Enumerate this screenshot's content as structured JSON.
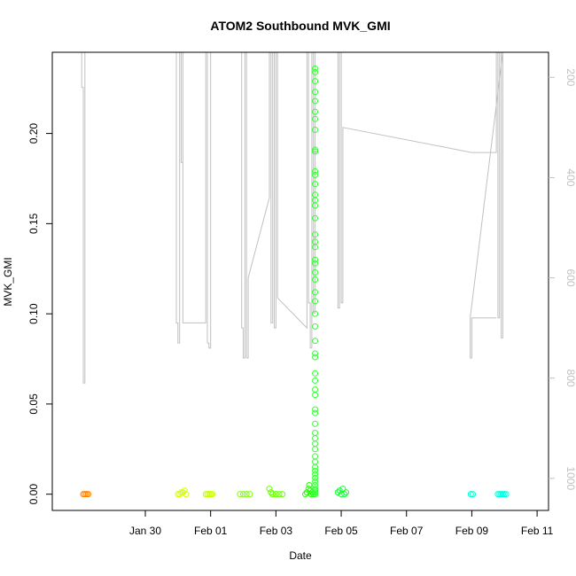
{
  "chart_data": {
    "type": "scatter",
    "title": "ATOM2 Southbound MVK_GMI",
    "xlabel": "Date",
    "ylabel": "MVK_GMI",
    "x_ticks": [
      "Jan 30",
      "Feb 01",
      "Feb 03",
      "Feb 05",
      "Feb 07",
      "Feb 09",
      "Feb 11"
    ],
    "y_ticks": [
      "0.00",
      "0.05",
      "0.10",
      "0.15",
      "0.20"
    ],
    "y2_ticks": [
      "200",
      "400",
      "600",
      "800",
      "1000"
    ],
    "ylim": [
      -0.009,
      0.245
    ],
    "y2lim": [
      1064,
      150
    ],
    "xlim_days": [
      -2.85,
      12.35
    ],
    "colors": {
      "axis": "#000000",
      "altitude": "#c0c0c0"
    },
    "series": [
      {
        "kind": "points",
        "points": [
          {
            "x": -1.9,
            "y": 0.0,
            "color": "#ff7f00"
          },
          {
            "x": -1.85,
            "y": 0.0,
            "color": "#ff7f00"
          },
          {
            "x": -1.8,
            "y": 0.0,
            "color": "#ff7f00"
          },
          {
            "x": -1.75,
            "y": 0.0,
            "color": "#ff7f00"
          },
          {
            "x": 1.0,
            "y": 0.0,
            "color": "#d4ff00"
          },
          {
            "x": 1.05,
            "y": 0.0,
            "color": "#d4ff00"
          },
          {
            "x": 1.1,
            "y": 0.001,
            "color": "#d4ff00"
          },
          {
            "x": 1.15,
            "y": 0.001,
            "color": "#d4ff00"
          },
          {
            "x": 1.2,
            "y": 0.002,
            "color": "#d4ff00"
          },
          {
            "x": 1.25,
            "y": 0.0,
            "color": "#d4ff00"
          },
          {
            "x": 1.85,
            "y": 0.0,
            "color": "#c6ff00"
          },
          {
            "x": 1.9,
            "y": 0.0,
            "color": "#c6ff00"
          },
          {
            "x": 1.95,
            "y": 0.0,
            "color": "#c6ff00"
          },
          {
            "x": 2.0,
            "y": 0.0,
            "color": "#c6ff00"
          },
          {
            "x": 2.05,
            "y": 0.0,
            "color": "#c6ff00"
          },
          {
            "x": 2.9,
            "y": 0.0,
            "color": "#7fff00"
          },
          {
            "x": 3.0,
            "y": 0.0,
            "color": "#7fff00"
          },
          {
            "x": 3.1,
            "y": 0.0,
            "color": "#7fff00"
          },
          {
            "x": 3.2,
            "y": 0.0,
            "color": "#7fff00"
          },
          {
            "x": 3.8,
            "y": 0.003,
            "color": "#66ff00"
          },
          {
            "x": 3.85,
            "y": 0.001,
            "color": "#66ff00"
          },
          {
            "x": 3.9,
            "y": 0.0,
            "color": "#66ff00"
          },
          {
            "x": 4.0,
            "y": 0.0,
            "color": "#66ff00"
          },
          {
            "x": 4.1,
            "y": 0.0,
            "color": "#66ff00"
          },
          {
            "x": 4.2,
            "y": 0.0,
            "color": "#66ff00"
          },
          {
            "x": 4.9,
            "y": 0.0,
            "color": "#22ff00"
          },
          {
            "x": 4.95,
            "y": 0.001,
            "color": "#22ff00"
          },
          {
            "x": 5.0,
            "y": 0.003,
            "color": "#22ff00"
          },
          {
            "x": 5.02,
            "y": 0.005,
            "color": "#22ff00"
          },
          {
            "x": 5.05,
            "y": 0.002,
            "color": "#22ff00"
          },
          {
            "x": 5.08,
            "y": 0.0,
            "color": "#22ff00"
          },
          {
            "x": 5.12,
            "y": 0.001,
            "color": "#22ff00"
          },
          {
            "x": 5.15,
            "y": 0.0,
            "color": "#22ff00"
          },
          {
            "x": 5.9,
            "y": 0.001,
            "color": "#11ff33"
          },
          {
            "x": 5.95,
            "y": 0.002,
            "color": "#11ff33"
          },
          {
            "x": 6.0,
            "y": 0.0,
            "color": "#11ff33"
          },
          {
            "x": 6.05,
            "y": 0.003,
            "color": "#11ff33"
          },
          {
            "x": 6.1,
            "y": 0.0,
            "color": "#11ff33"
          },
          {
            "x": 6.15,
            "y": 0.001,
            "color": "#11ff33"
          },
          {
            "x": 9.97,
            "y": 0.0,
            "color": "#00ffcc"
          },
          {
            "x": 10.03,
            "y": 0.0,
            "color": "#00ffcc"
          },
          {
            "x": 10.8,
            "y": 0.0,
            "color": "#00ffdd"
          },
          {
            "x": 10.85,
            "y": 0.0,
            "color": "#00ffdd"
          },
          {
            "x": 10.9,
            "y": 0.0,
            "color": "#00ffdd"
          },
          {
            "x": 10.95,
            "y": 0.0,
            "color": "#00ffdd"
          },
          {
            "x": 11.0,
            "y": 0.0,
            "color": "#00ffdd"
          },
          {
            "x": 11.05,
            "y": 0.0,
            "color": "#00ffdd"
          }
        ]
      },
      {
        "kind": "column",
        "x": 5.2,
        "color": "#33ff33",
        "y": [
          0.0,
          0.001,
          0.002,
          0.003,
          0.005,
          0.007,
          0.009,
          0.011,
          0.013,
          0.015,
          0.018,
          0.021,
          0.025,
          0.028,
          0.031,
          0.034,
          0.039,
          0.045,
          0.047,
          0.055,
          0.058,
          0.063,
          0.067,
          0.076,
          0.078,
          0.085,
          0.093,
          0.1,
          0.107,
          0.112,
          0.119,
          0.123,
          0.128,
          0.13,
          0.137,
          0.14,
          0.144,
          0.153,
          0.16,
          0.163,
          0.166,
          0.172,
          0.177,
          0.179,
          0.19,
          0.191,
          0.202,
          0.208,
          0.212,
          0.218,
          0.223,
          0.229,
          0.234,
          0.236
        ]
      }
    ],
    "altitude_track": [
      [
        -1.95,
        150
      ],
      [
        -1.95,
        220
      ],
      [
        -1.9,
        220
      ],
      [
        -1.9,
        810
      ],
      [
        -1.85,
        810
      ],
      [
        -1.85,
        150
      ],
      [
        0.95,
        150
      ],
      [
        0.95,
        690
      ],
      [
        1.0,
        690
      ],
      [
        1.0,
        730
      ],
      [
        1.05,
        730
      ],
      [
        1.05,
        150
      ],
      [
        1.1,
        150
      ],
      [
        1.1,
        370
      ],
      [
        1.15,
        370
      ],
      [
        1.15,
        150
      ],
      [
        1.15,
        690
      ],
      [
        1.85,
        690
      ],
      [
        1.85,
        150
      ],
      [
        1.9,
        150
      ],
      [
        1.9,
        730
      ],
      [
        1.95,
        730
      ],
      [
        1.95,
        740
      ],
      [
        2.0,
        740
      ],
      [
        2.0,
        150
      ],
      [
        2.95,
        150
      ],
      [
        2.95,
        700
      ],
      [
        3.0,
        700
      ],
      [
        3.0,
        760
      ],
      [
        3.05,
        760
      ],
      [
        3.05,
        150
      ],
      [
        3.1,
        150
      ],
      [
        3.1,
        760
      ],
      [
        3.15,
        760
      ],
      [
        3.15,
        600
      ],
      [
        3.8,
        440
      ],
      [
        3.8,
        150
      ],
      [
        3.85,
        150
      ],
      [
        3.85,
        690
      ],
      [
        3.9,
        690
      ],
      [
        3.9,
        150
      ],
      [
        3.95,
        150
      ],
      [
        3.95,
        700
      ],
      [
        4.0,
        700
      ],
      [
        4.0,
        150
      ],
      [
        4.05,
        150
      ],
      [
        4.05,
        640
      ],
      [
        4.95,
        700
      ],
      [
        4.95,
        150
      ],
      [
        5.0,
        150
      ],
      [
        5.0,
        650
      ],
      [
        5.05,
        650
      ],
      [
        5.05,
        740
      ],
      [
        5.1,
        740
      ],
      [
        5.1,
        150
      ],
      [
        5.15,
        150
      ],
      [
        5.15,
        670
      ],
      [
        5.2,
        670
      ],
      [
        5.2,
        150
      ],
      [
        5.25,
        150
      ],
      [
        5.9,
        150
      ],
      [
        5.9,
        660
      ],
      [
        5.95,
        660
      ],
      [
        5.95,
        150
      ],
      [
        6.0,
        150
      ],
      [
        6.0,
        650
      ],
      [
        6.05,
        650
      ],
      [
        6.05,
        300
      ],
      [
        10.0,
        350
      ],
      [
        10.3,
        350
      ],
      [
        10.75,
        350
      ],
      [
        10.75,
        150
      ],
      [
        10.8,
        150
      ],
      [
        10.8,
        680
      ],
      [
        10.85,
        680
      ],
      [
        10.85,
        150
      ],
      [
        10.9,
        150
      ],
      [
        10.9,
        720
      ],
      [
        10.95,
        720
      ],
      [
        10.95,
        150
      ],
      [
        9.95,
        680
      ],
      [
        9.95,
        760
      ],
      [
        10.0,
        760
      ],
      [
        10.0,
        680
      ],
      [
        10.75,
        680
      ]
    ]
  }
}
